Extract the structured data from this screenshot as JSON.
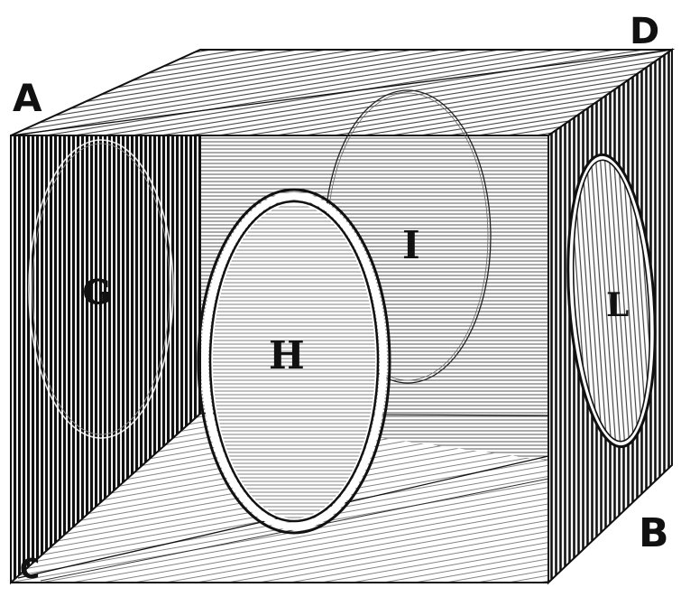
{
  "figure": {
    "corner_labels": {
      "a": "A",
      "b": "B",
      "c": "C",
      "d": "D"
    },
    "ring_labels": {
      "g": "G",
      "h": "H",
      "i": "I",
      "l": "L"
    }
  },
  "colors": {
    "ink": "#111111",
    "paper": "#ffffff",
    "hatch_light": "#5a5a5a"
  }
}
